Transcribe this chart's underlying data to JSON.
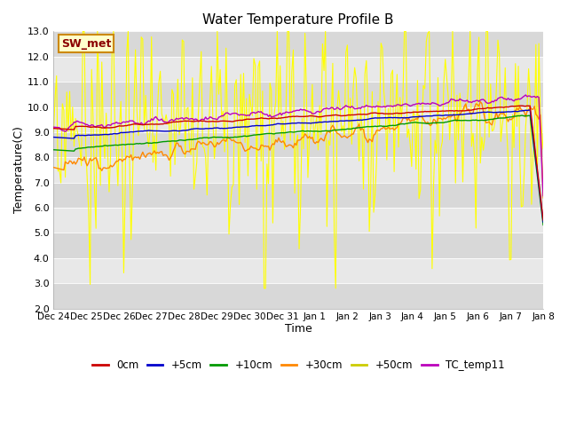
{
  "title": "Water Temperature Profile B",
  "xlabel": "Time",
  "ylabel": "Temperature(C)",
  "ylim": [
    2.0,
    13.0
  ],
  "yticks": [
    2.0,
    3.0,
    4.0,
    5.0,
    6.0,
    7.0,
    8.0,
    9.0,
    10.0,
    11.0,
    12.0,
    13.0
  ],
  "annotation_label": "SW_met",
  "plot_bg_color": "#dcdcdc",
  "series_colors": {
    "0cm": "#cc0000",
    "+5cm": "#0000cc",
    "+10cm": "#009900",
    "+30cm": "#ff8800",
    "+50cm": "#ffff00",
    "TC_temp11": "#bb00bb"
  },
  "x_tick_labels": [
    "Dec 24",
    "Dec 25",
    "Dec 26",
    "Dec 27",
    "Dec 28",
    "Dec 29",
    "Dec 30",
    "Dec 31",
    "Jan 1",
    "Jan 2",
    "Jan 3",
    "Jan 4",
    "Jan 5",
    "Jan 6",
    "Jan 7",
    "Jan 8"
  ],
  "num_points": 336,
  "band_colors": [
    "#d8d8d8",
    "#e8e8e8"
  ]
}
